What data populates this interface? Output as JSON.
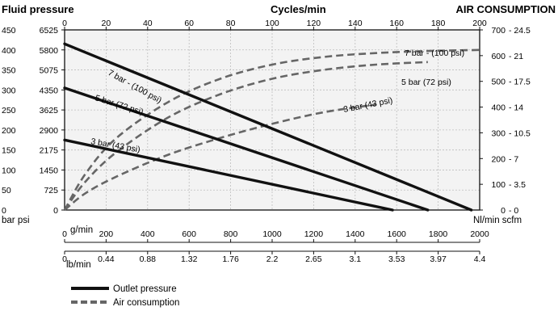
{
  "headers": {
    "fluid_pressure": "Fluid pressure",
    "cycles": "Cycles/min",
    "air_consumption": "AIR CONSUMPTION"
  },
  "axis_titles": {
    "left_units": "bar psi",
    "right_units": "Nl/min scfm",
    "flow_gmin": "g/min",
    "flow_lbmin": "lb/min"
  },
  "ticks": {
    "cycles": [
      "0",
      "20",
      "40",
      "60",
      "80",
      "100",
      "120",
      "140",
      "160",
      "180",
      "200"
    ],
    "bar": [
      "0",
      "50",
      "100",
      "150",
      "200",
      "250",
      "300",
      "350",
      "400",
      "450"
    ],
    "psi": [
      "0",
      "725",
      "1450",
      "2175",
      "2900",
      "3625",
      "4350",
      "5075",
      "5800",
      "6525"
    ],
    "nlmin": [
      "0",
      "100",
      "200",
      "300",
      "400",
      "500",
      "600",
      "700"
    ],
    "scfm": [
      "0",
      "3.5",
      "7",
      "10.5",
      "14",
      "17.5",
      "21",
      "24.5"
    ],
    "gmin": [
      "0",
      "200",
      "400",
      "600",
      "800",
      "1000",
      "1200",
      "1400",
      "1600",
      "1800",
      "2000"
    ],
    "lbmin": [
      "0",
      "0.44",
      "0.88",
      "1.32",
      "1.76",
      "2.2",
      "2.65",
      "3.1",
      "3.53",
      "3.97",
      "4.4"
    ]
  },
  "legend": {
    "outlet": "Outlet pressure",
    "air": "Air consumption"
  },
  "colors": {
    "outlet": "#111111",
    "air": "#666666",
    "plot_bg": "#f3f3f3",
    "grid": "#bdbdbd"
  },
  "chart_data": {
    "type": "line",
    "grid": true,
    "x_axis": {
      "label": "g/min",
      "range": [
        0,
        2000
      ],
      "secondary_label": "lb/min",
      "secondary_range": [
        0,
        4.4
      ]
    },
    "top_axis": {
      "label": "Cycles/min",
      "range": [
        0,
        200
      ]
    },
    "y_left": {
      "label": "Fluid pressure",
      "units": "bar psi",
      "range": [
        0,
        450
      ],
      "secondary_range_psi": [
        0,
        6525
      ]
    },
    "y_right": {
      "label": "AIR CONSUMPTION",
      "units": "Nl/min scfm",
      "range": [
        0,
        700
      ],
      "secondary_range_scfm": [
        0,
        24.5
      ]
    },
    "outlet_pressure": [
      {
        "name": "7 bar - (100 psi)",
        "axis": "left",
        "x_gmin": [
          0,
          1960
        ],
        "y_bar": [
          415,
          0
        ]
      },
      {
        "name": "5 bar (72 psi)",
        "axis": "left",
        "x_gmin": [
          0,
          1750
        ],
        "y_bar": [
          305,
          0
        ]
      },
      {
        "name": "3 bar (43 psi)",
        "axis": "left",
        "x_gmin": [
          0,
          1580
        ],
        "y_bar": [
          175,
          0
        ]
      }
    ],
    "air_consumption": [
      {
        "name": "7 bar - (100 psi)",
        "axis": "right",
        "x_cycles": [
          0,
          10,
          25,
          50,
          75,
          100,
          125,
          150,
          175,
          200
        ],
        "y_nlmin": [
          0,
          140,
          280,
          420,
          510,
          565,
          595,
          610,
          618,
          622
        ]
      },
      {
        "name": "5 bar (72 psi)",
        "axis": "right",
        "x_cycles": [
          0,
          10,
          25,
          50,
          75,
          100,
          125,
          150,
          175
        ],
        "y_nlmin": [
          0,
          110,
          225,
          360,
          450,
          510,
          545,
          565,
          575
        ]
      },
      {
        "name": "3 bar (43 psi)",
        "axis": "right",
        "x_cycles": [
          0,
          10,
          25,
          50,
          75,
          100,
          125,
          150
        ],
        "y_nlmin": [
          0,
          65,
          130,
          215,
          280,
          335,
          380,
          410
        ]
      }
    ],
    "legend_position": "bottom-left"
  }
}
